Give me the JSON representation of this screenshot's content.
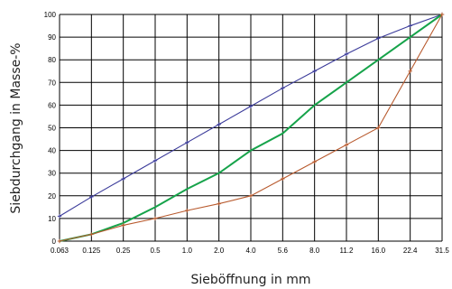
{
  "chart_data": {
    "type": "line",
    "xlabel": "Sieböffnung in mm",
    "ylabel": "Siebdurchgang in Masse-%",
    "categories": [
      "0.063",
      "0.125",
      "0.25",
      "0.5",
      "1.0",
      "2.0",
      "4.0",
      "5.6",
      "8.0",
      "11.2",
      "16.0",
      "22.4",
      "31.5"
    ],
    "ylim": [
      0,
      100
    ],
    "yticks": [
      0,
      10,
      20,
      30,
      40,
      50,
      60,
      70,
      80,
      90,
      100
    ],
    "grid": true,
    "legend": "none",
    "series": [
      {
        "color": "#3b3b9a",
        "marker": "plus",
        "values": [
          11,
          19.5,
          27.5,
          35.5,
          43.5,
          51.5,
          59.5,
          67.5,
          75,
          82.5,
          89.5,
          95,
          100
        ]
      },
      {
        "color": "#16a34a",
        "marker": "none",
        "values": [
          0,
          3,
          8,
          15,
          23,
          30,
          40,
          47.5,
          60,
          70,
          80,
          90,
          100
        ]
      },
      {
        "color": "#b85a2e",
        "marker": "plus",
        "values": [
          0,
          3,
          7,
          10,
          13.5,
          16.5,
          20,
          27.5,
          35,
          42.5,
          50,
          75,
          100
        ]
      }
    ]
  }
}
